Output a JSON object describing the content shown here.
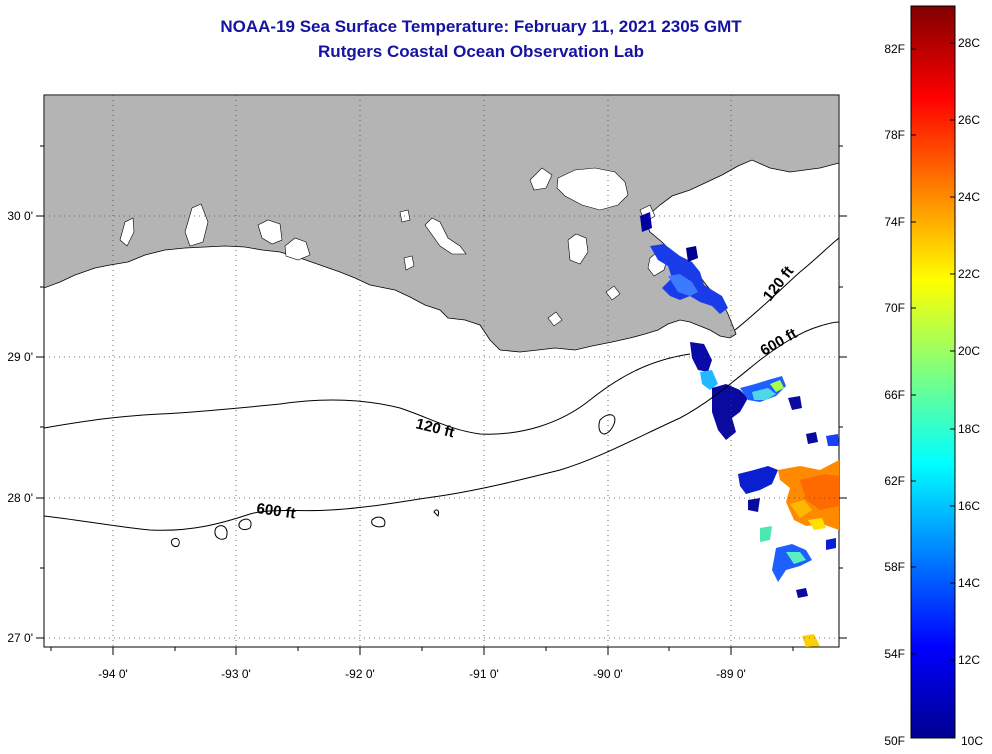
{
  "title": "NOAA-19 Sea Surface Temperature:  February 11, 2021 2305 GMT",
  "subtitle": "Rutgers Coastal Ocean Observation Lab",
  "map": {
    "lon_labels": [
      "-94 0'",
      "-93 0'",
      "-92 0'",
      "-91 0'",
      "-90 0'",
      "-89 0'"
    ],
    "lat_labels": [
      "30 0'",
      "29 0'",
      "28 0'",
      "27 0'"
    ],
    "contour_labels": [
      {
        "text": "120 ft"
      },
      {
        "text": "600 ft"
      },
      {
        "text": "120 ft"
      },
      {
        "text": "600 ft"
      }
    ],
    "land_color": "#b4b4b4",
    "grid": true
  },
  "colorbar": {
    "fahrenheit_labels": [
      "82F",
      "78F",
      "74F",
      "70F",
      "66F",
      "62F",
      "58F",
      "54F",
      "50F"
    ],
    "celsius_labels": [
      "28C",
      "26C",
      "24C",
      "22C",
      "20C",
      "18C",
      "16C",
      "14C",
      "12C",
      "10C"
    ],
    "range_c": [
      10,
      29
    ],
    "colormap": "jet"
  }
}
